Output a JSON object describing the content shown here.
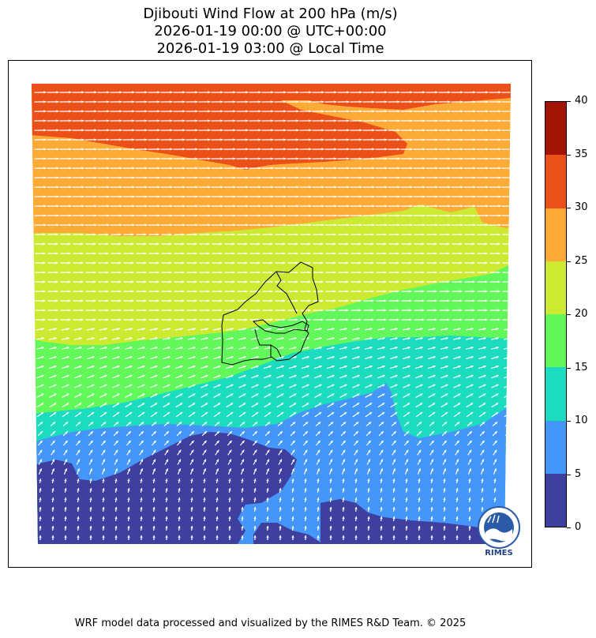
{
  "title": {
    "line1": "Djibouti Wind Flow at 200 hPa (m/s)",
    "line2": "2026-01-19 00:00 @ UTC+00:00",
    "line3": "2026-01-19 03:00 @ Local Time"
  },
  "colorbar": {
    "levels": [
      {
        "min": 0,
        "max": 5,
        "color": "#3f3f9f"
      },
      {
        "min": 5,
        "max": 10,
        "color": "#4497f8"
      },
      {
        "min": 10,
        "max": 15,
        "color": "#1bdcbf"
      },
      {
        "min": 15,
        "max": 20,
        "color": "#62f75a"
      },
      {
        "min": 20,
        "max": 25,
        "color": "#cdea33"
      },
      {
        "min": 25,
        "max": 30,
        "color": "#fdaa36"
      },
      {
        "min": 30,
        "max": 35,
        "color": "#ea5018"
      },
      {
        "min": 35,
        "max": 40,
        "color": "#a11403"
      }
    ],
    "tick_labels": [
      "0",
      "5",
      "10",
      "15",
      "20",
      "25",
      "30",
      "35",
      "40"
    ]
  },
  "map": {
    "arrow_color": "#ffffff",
    "border_color": "#000000",
    "wind_pattern": "Westerly flow strongest in the north (30-35 m/s), weakening southward; light southerly winds (0-5 m/s) in the south"
  },
  "logo": {
    "text": "RIMES"
  },
  "footer": {
    "text": "WRF model data processed and visualized by the RIMES R&D Team. © 2025"
  }
}
